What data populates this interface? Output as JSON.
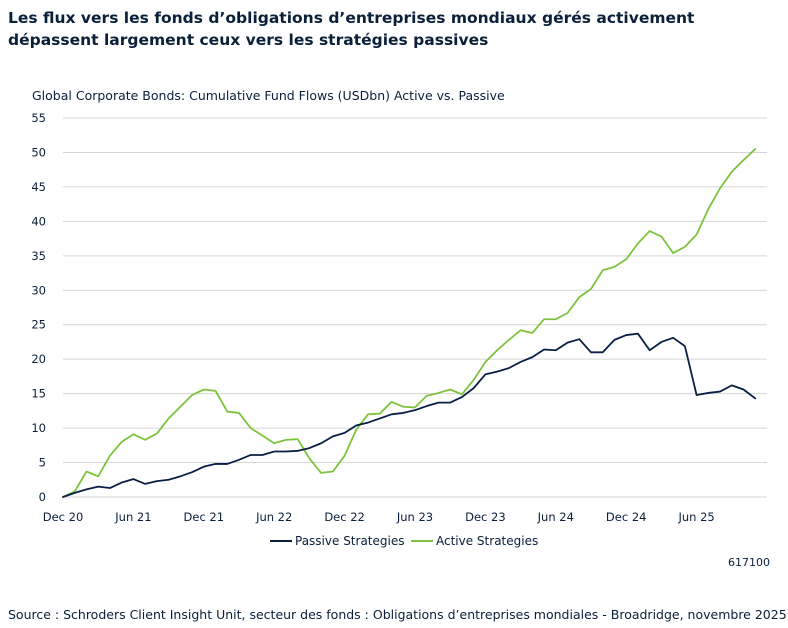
{
  "header": {
    "title": "Les flux vers les fonds d’obligations d’entreprises mondiaux gérés activement dépassent largement ceux vers les stratégies passives",
    "chart_subtitle": "Global Corporate Bonds: Cumulative Fund Flows (USDbn) Active vs. Passive"
  },
  "footer": {
    "code": "617100",
    "source": "Source : Schroders Client Insight Unit, secteur des fonds : Obligations d’entreprises mondiales - Broadridge, novembre 2025"
  },
  "colors": {
    "passive": "#0a1f44",
    "active": "#7ec33d",
    "grid": "#d6d6d6"
  },
  "chart_data": {
    "type": "line",
    "title": "Global Corporate Bonds: Cumulative Fund Flows (USDbn) Active vs. Passive",
    "xlabel": "",
    "ylabel": "",
    "ylim": [
      0,
      55
    ],
    "yticks": [
      "0",
      "5",
      "10",
      "15",
      "20",
      "25",
      "30",
      "35",
      "40",
      "45",
      "50",
      "55"
    ],
    "xlim": [
      0,
      60
    ],
    "xtick_labels": [
      {
        "label": "Dec 20",
        "x": 0
      },
      {
        "label": "Jun 21",
        "x": 6
      },
      {
        "label": "Dec 21",
        "x": 12
      },
      {
        "label": "Jun 22",
        "x": 18
      },
      {
        "label": "Dec 22",
        "x": 24
      },
      {
        "label": "Jun 23",
        "x": 30
      },
      {
        "label": "Dec 23",
        "x": 36
      },
      {
        "label": "Jun 24",
        "x": 42
      },
      {
        "label": "Dec 24",
        "x": 48
      },
      {
        "label": "Jun 25",
        "x": 54
      }
    ],
    "grid": true,
    "legend_position": "bottom-center",
    "series": [
      {
        "name": "Passive Strategies",
        "values": [
          0,
          0.6,
          1.1,
          1.5,
          1.3,
          2.1,
          2.6,
          1.9,
          2.3,
          2.5,
          3.0,
          3.6,
          4.4,
          4.8,
          4.8,
          5.4,
          6.1,
          6.1,
          6.6,
          6.6,
          6.7,
          7.1,
          7.8,
          8.8,
          9.3,
          10.4,
          10.8,
          11.4,
          12.0,
          12.2,
          12.6,
          13.2,
          13.7,
          13.7,
          14.5,
          15.8,
          17.8,
          18.2,
          18.7,
          19.6,
          20.3,
          21.4,
          21.3,
          22.4,
          22.9,
          21.0,
          21.0,
          22.8,
          23.5,
          23.7,
          21.3,
          22.5,
          23.1,
          21.9,
          14.8,
          15.1,
          15.3,
          16.2,
          15.6,
          14.3
        ]
      },
      {
        "name": "Active Strategies",
        "values": [
          0,
          0.8,
          3.7,
          3.0,
          6.0,
          8.0,
          9.1,
          8.3,
          9.2,
          11.4,
          13.1,
          14.8,
          15.6,
          15.4,
          12.4,
          12.2,
          10.0,
          8.9,
          7.8,
          8.3,
          8.4,
          5.6,
          3.5,
          3.7,
          6.0,
          9.8,
          12.0,
          12.1,
          13.8,
          13.1,
          13.0,
          14.7,
          15.1,
          15.6,
          14.9,
          17.0,
          19.6,
          21.3,
          22.8,
          24.2,
          23.8,
          25.8,
          25.8,
          26.7,
          29.0,
          30.2,
          32.9,
          33.4,
          34.5,
          36.8,
          38.6,
          37.8,
          35.4,
          36.3,
          38.1,
          41.8,
          44.8,
          47.2,
          48.9,
          50.5
        ]
      }
    ]
  }
}
